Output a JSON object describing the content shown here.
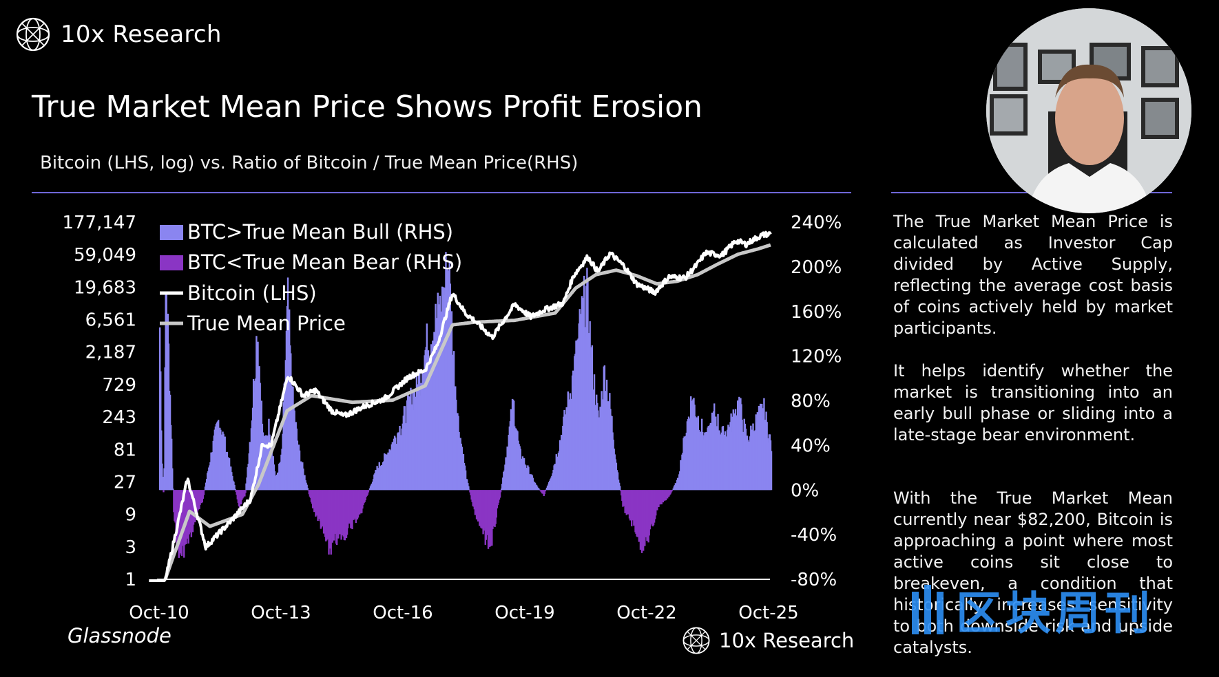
{
  "brand": {
    "name": "10x Research"
  },
  "title": "True Market Mean Price Shows Profit Erosion",
  "subtitle": "Bitcoin (LHS, log) vs. Ratio of Bitcoin / True Mean Price(RHS)",
  "source": "Glassnode",
  "footer_brand": "10x Research",
  "watermark": "区块周刊",
  "notes": [
    "The True Market Mean Price is calculated as Investor Cap divided by Active Supply, reflecting the average cost basis of coins actively held by market participants.",
    "It helps identify whether the market is transitioning into an early bull phase or sliding into a late-stage bear environment.",
    "With the True Market Mean currently near $82,200, Bitcoin is approaching a point where most active coins sit close to breakeven, a condition that historically increases sensitivity to both downside risk and upside catalysts."
  ],
  "colors": {
    "bull": "#8a85f0",
    "bear": "#8a35c4",
    "bitcoin": "#ffffff",
    "true_mean": "#c8c8c8",
    "rule": "#6f67d9"
  },
  "chart_data": {
    "type": "area",
    "x_ticks": [
      "Oct-10",
      "Oct-13",
      "Oct-16",
      "Oct-19",
      "Oct-22",
      "Oct-25"
    ],
    "y_left": {
      "label": "",
      "scale": "log",
      "ticks": [
        "177,147",
        "59,049",
        "19,683",
        "6,561",
        "2,187",
        "729",
        "243",
        "81",
        "27",
        "9",
        "3",
        "1"
      ]
    },
    "y_right": {
      "label": "",
      "ticks": [
        "240%",
        "200%",
        "160%",
        "120%",
        "80%",
        "40%",
        "0%",
        "-40%",
        "-80%"
      ],
      "range": [
        -80,
        240
      ]
    },
    "legend": [
      {
        "label": "BTC>True Mean Bull (RHS)",
        "color": "#8a85f0"
      },
      {
        "label": "BTC<True Mean Bear (RHS)",
        "color": "#8a35c4"
      },
      {
        "label": "Bitcoin (LHS)",
        "color": "#ffffff"
      },
      {
        "label": "True Mean Price",
        "color": "#c8c8c8"
      }
    ],
    "ratio_series": {
      "name": "Ratio of Bitcoin / True Mean Price (RHS, %)",
      "t": [
        2010.75,
        2010.8,
        2010.85,
        2010.9,
        2011.0,
        2011.1,
        2011.25,
        2011.45,
        2011.6,
        2011.8,
        2012.0,
        2012.2,
        2012.4,
        2012.55,
        2012.7,
        2012.85,
        2013.0,
        2013.15,
        2013.3,
        2013.45,
        2013.6,
        2013.75,
        2013.9,
        2014.0,
        2014.15,
        2014.3,
        2014.5,
        2014.7,
        2014.9,
        2015.1,
        2015.3,
        2015.5,
        2015.7,
        2015.9,
        2016.1,
        2016.3,
        2016.5,
        2016.7,
        2016.9,
        2017.1,
        2017.3,
        2017.5,
        2017.7,
        2017.85,
        2017.97,
        2018.1,
        2018.3,
        2018.5,
        2018.7,
        2018.9,
        2019.0,
        2019.15,
        2019.3,
        2019.45,
        2019.6,
        2019.8,
        2020.0,
        2020.2,
        2020.4,
        2020.6,
        2020.8,
        2020.95,
        2021.1,
        2021.25,
        2021.4,
        2021.55,
        2021.7,
        2021.85,
        2022.0,
        2022.15,
        2022.3,
        2022.45,
        2022.6,
        2022.75,
        2022.9,
        2023.0,
        2023.15,
        2023.3,
        2023.5,
        2023.7,
        2023.85,
        2024.0,
        2024.2,
        2024.4,
        2024.6,
        2024.8,
        2025.0,
        2025.2,
        2025.4,
        2025.6,
        2025.8
      ],
      "values": [
        150,
        30,
        -10,
        200,
        90,
        -30,
        -60,
        -45,
        -30,
        -10,
        30,
        65,
        35,
        10,
        -15,
        -5,
        60,
        150,
        40,
        60,
        10,
        30,
        170,
        90,
        40,
        15,
        -15,
        -30,
        -55,
        -45,
        -40,
        -30,
        -20,
        0,
        20,
        30,
        45,
        60,
        80,
        95,
        130,
        150,
        170,
        210,
        125,
        60,
        10,
        -20,
        -40,
        -50,
        -30,
        0,
        40,
        80,
        35,
        20,
        5,
        -5,
        15,
        45,
        80,
        110,
        150,
        180,
        110,
        60,
        110,
        70,
        20,
        -15,
        -25,
        -35,
        -50,
        -45,
        -30,
        -15,
        -10,
        -5,
        10,
        55,
        85,
        65,
        45,
        70,
        50,
        60,
        80,
        45,
        60,
        75,
        40
      ]
    },
    "bitcoin_series": {
      "name": "Bitcoin (LHS)",
      "t": [
        2010.5,
        2010.8,
        2011.45,
        2011.6,
        2011.9,
        2012.5,
        2012.85,
        2013.0,
        2013.3,
        2013.5,
        2013.92,
        2014.3,
        2014.6,
        2015.0,
        2015.3,
        2015.8,
        2016.3,
        2016.9,
        2017.3,
        2017.6,
        2017.97,
        2018.3,
        2018.5,
        2018.95,
        2019.5,
        2019.9,
        2020.2,
        2020.7,
        2020.95,
        2021.3,
        2021.55,
        2021.85,
        2022.2,
        2022.5,
        2022.95,
        2023.3,
        2023.7,
        2024.0,
        2024.2,
        2024.6,
        2024.95,
        2025.2,
        2025.4,
        2025.6,
        2025.8
      ],
      "values": [
        0.06,
        0.5,
        30,
        14,
        3,
        7,
        12,
        15,
        100,
        90,
        1000,
        500,
        600,
        300,
        250,
        350,
        450,
        950,
        1200,
        2800,
        16000,
        8000,
        6500,
        3600,
        11000,
        7200,
        9000,
        11500,
        29000,
        55000,
        33000,
        62000,
        40000,
        22000,
        16500,
        28000,
        27000,
        43000,
        63000,
        58000,
        95000,
        84000,
        100000,
        115000,
        120000
      ]
    },
    "true_mean_series": {
      "name": "True Mean Price",
      "t": [
        2010.9,
        2011.5,
        2012.0,
        2012.8,
        2013.2,
        2013.9,
        2014.5,
        2015.5,
        2016.5,
        2017.3,
        2017.97,
        2018.5,
        2019.5,
        2020.5,
        2021.0,
        2021.5,
        2022.0,
        2022.5,
        2023.0,
        2023.5,
        2024.0,
        2024.5,
        2025.0,
        2025.5,
        2025.8
      ],
      "values": [
        1,
        10,
        6,
        9,
        25,
        300,
        500,
        400,
        430,
        700,
        5500,
        6000,
        6400,
        8200,
        19000,
        30000,
        35000,
        29000,
        22000,
        24000,
        30000,
        43000,
        60000,
        72000,
        82200
      ]
    }
  }
}
